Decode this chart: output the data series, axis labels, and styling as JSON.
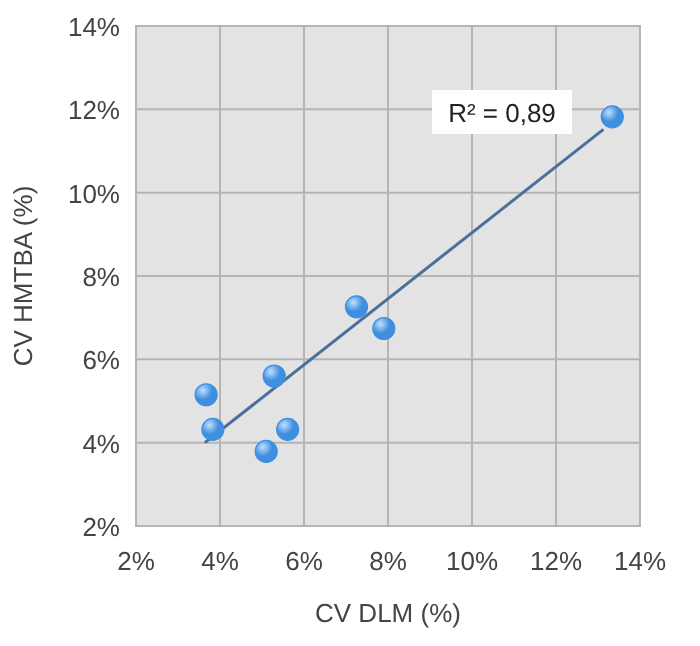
{
  "chart_data": {
    "type": "scatter",
    "xlabel": "CV DLM (%)",
    "ylabel": "CV HMTBA (%)",
    "xlim": [
      2,
      14
    ],
    "ylim": [
      2,
      14
    ],
    "xticks": [
      {
        "value": 2,
        "label": "2%"
      },
      {
        "value": 4,
        "label": "4%"
      },
      {
        "value": 6,
        "label": "6%"
      },
      {
        "value": 8,
        "label": "8%"
      },
      {
        "value": 10,
        "label": "10%"
      },
      {
        "value": 12,
        "label": "12%"
      },
      {
        "value": 14,
        "label": "14%"
      }
    ],
    "yticks": [
      {
        "value": 2,
        "label": "2%"
      },
      {
        "value": 4,
        "label": "4%"
      },
      {
        "value": 6,
        "label": "6%"
      },
      {
        "value": 8,
        "label": "8%"
      },
      {
        "value": 10,
        "label": "10%"
      },
      {
        "value": 12,
        "label": "12%"
      },
      {
        "value": 14,
        "label": "14%"
      }
    ],
    "grid": true,
    "series": [
      {
        "marker": "circle",
        "color": "#3f8fe0",
        "x": [
          3.67,
          3.83,
          5.1,
          5.61,
          5.29,
          7.25,
          7.9,
          13.34
        ],
        "values": [
          5.15,
          4.32,
          3.79,
          4.32,
          5.6,
          7.26,
          6.74,
          11.82
        ]
      },
      {
        "type": "line",
        "marker": "none",
        "color": "#4a6f9a",
        "x": [
          3.64,
          13.13
        ],
        "values": [
          4.0,
          11.52
        ]
      }
    ],
    "annotations": [
      "R² = 0,89"
    ]
  }
}
